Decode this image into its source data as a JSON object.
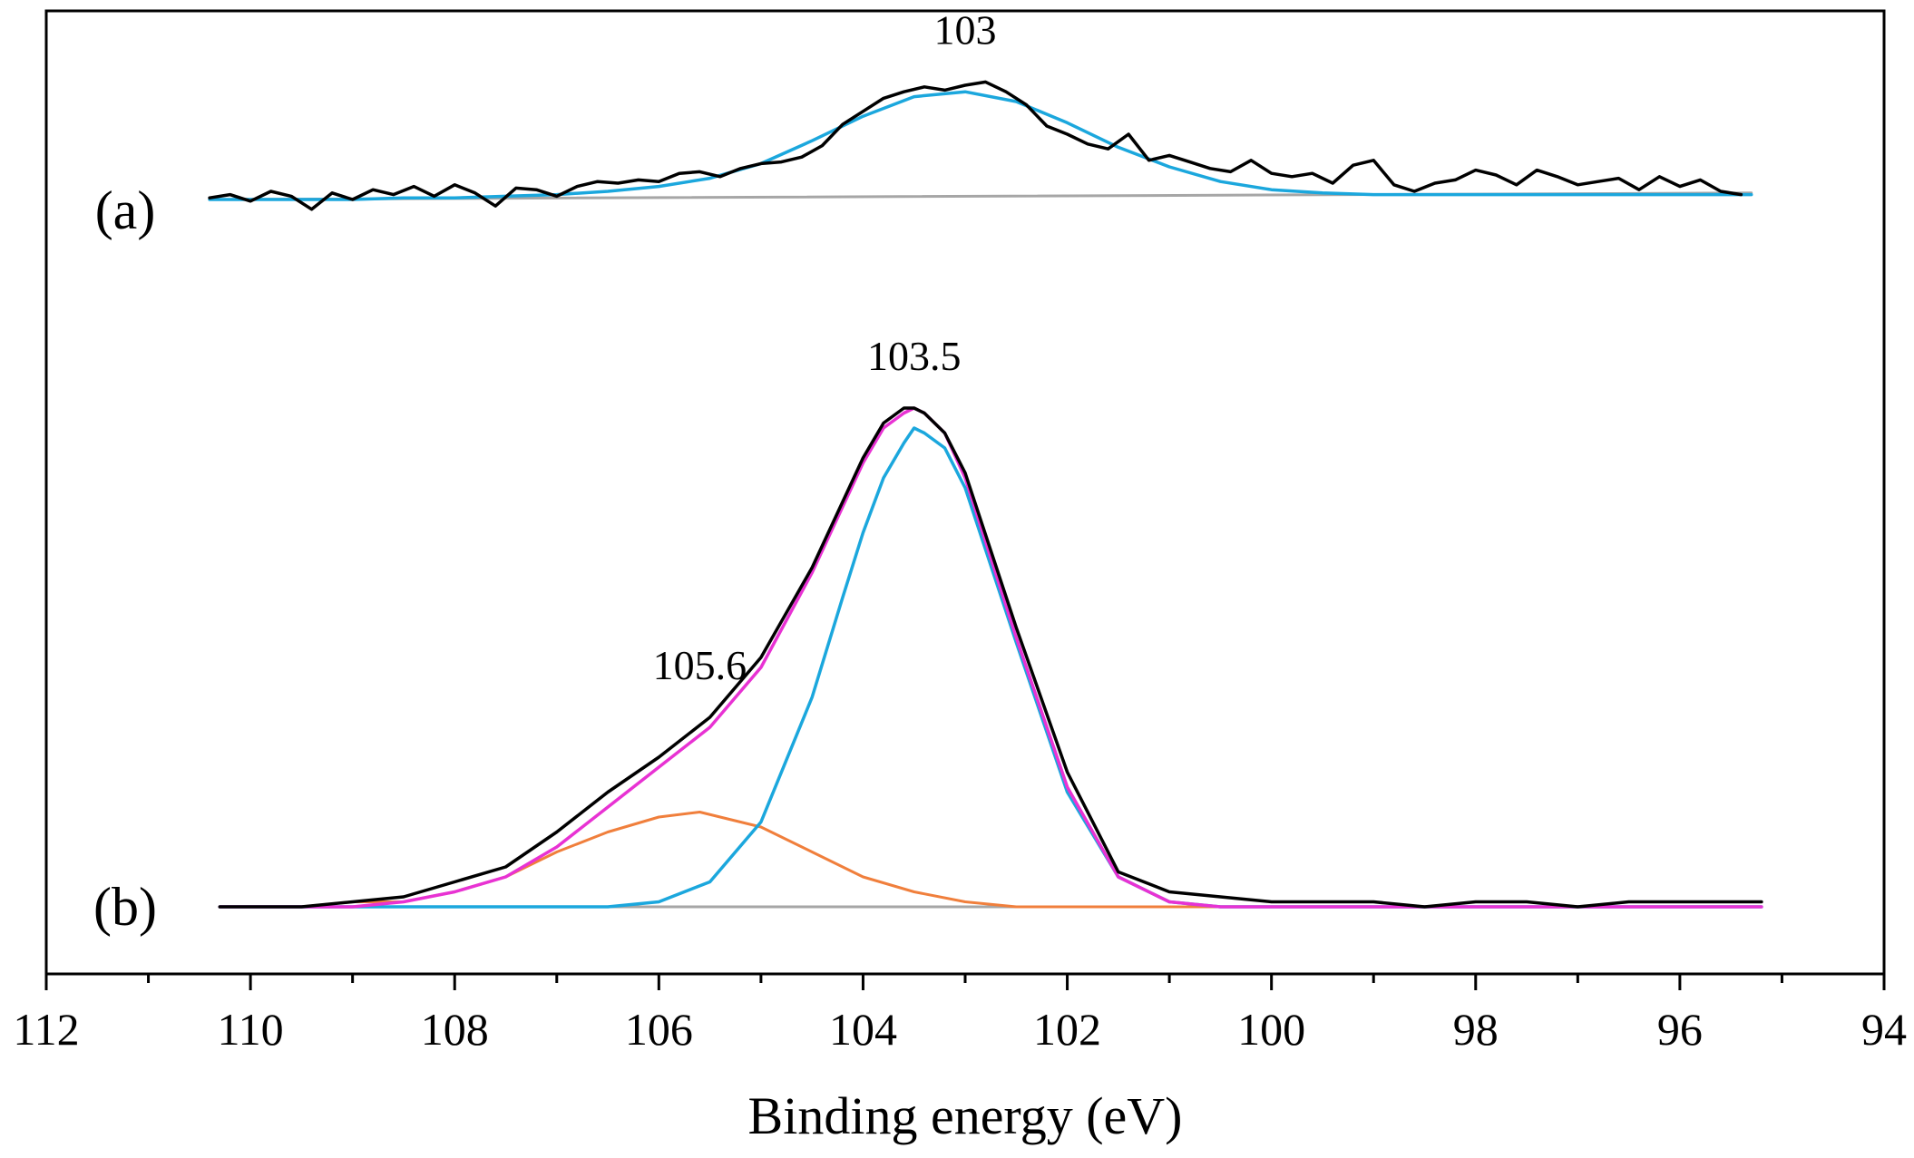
{
  "chart_data": {
    "type": "line",
    "xlabel": "Binding energy (eV)",
    "ylabel": "",
    "xlim": [
      112,
      94
    ],
    "x_reversed": true,
    "x_ticks": [
      112,
      110,
      108,
      106,
      104,
      102,
      100,
      98,
      96,
      94
    ],
    "y_ticks_shown": false,
    "grid": false,
    "colors": {
      "experimental": "#000000",
      "background": "#a6a6a6",
      "component_103": "#1ba7dd",
      "component_105_6": "#f07f3c",
      "envelope": "#e832d3"
    },
    "panels": [
      {
        "label": "(a)",
        "annotations": [
          {
            "text": "103",
            "x": 103
          }
        ],
        "x_range": [
          110.4,
          95.3
        ],
        "series": [
          {
            "role": "experimental",
            "x": [
              110.4,
              110.2,
              110.0,
              109.8,
              109.6,
              109.4,
              109.2,
              109.0,
              108.8,
              108.6,
              108.4,
              108.2,
              108.0,
              107.8,
              107.6,
              107.4,
              107.2,
              107.0,
              106.8,
              106.6,
              106.4,
              106.2,
              106.0,
              105.8,
              105.6,
              105.4,
              105.2,
              105.0,
              104.8,
              104.6,
              104.4,
              104.2,
              104.0,
              103.8,
              103.6,
              103.4,
              103.2,
              103.0,
              102.8,
              102.6,
              102.4,
              102.2,
              102.0,
              101.8,
              101.6,
              101.4,
              101.2,
              101.0,
              100.8,
              100.6,
              100.4,
              100.2,
              100.0,
              99.8,
              99.6,
              99.4,
              99.2,
              99.0,
              98.8,
              98.6,
              98.4,
              98.2,
              98.0,
              97.8,
              97.6,
              97.4,
              97.2,
              97.0,
              96.8,
              96.6,
              96.4,
              96.2,
              96.0,
              95.8,
              95.6,
              95.4
            ],
            "y": [
              0.01,
              0.03,
              -0.01,
              0.05,
              0.02,
              -0.06,
              0.04,
              0.0,
              0.06,
              0.03,
              0.08,
              0.02,
              0.09,
              0.04,
              -0.04,
              0.07,
              0.06,
              0.02,
              0.08,
              0.11,
              0.1,
              0.12,
              0.11,
              0.16,
              0.17,
              0.14,
              0.19,
              0.22,
              0.23,
              0.26,
              0.33,
              0.46,
              0.54,
              0.62,
              0.66,
              0.69,
              0.67,
              0.7,
              0.72,
              0.66,
              0.58,
              0.45,
              0.4,
              0.34,
              0.31,
              0.4,
              0.24,
              0.27,
              0.23,
              0.19,
              0.17,
              0.24,
              0.16,
              0.14,
              0.16,
              0.1,
              0.21,
              0.24,
              0.09,
              0.05,
              0.1,
              0.12,
              0.18,
              0.15,
              0.09,
              0.18,
              0.14,
              0.09,
              0.11,
              0.13,
              0.06,
              0.14,
              0.08,
              0.12,
              0.05,
              0.03
            ]
          },
          {
            "role": "component_103",
            "x": [
              110.4,
              110.0,
              109.5,
              109.0,
              108.5,
              108.0,
              107.5,
              107.0,
              106.5,
              106.0,
              105.5,
              105.0,
              104.5,
              104.0,
              103.5,
              103.0,
              102.5,
              102.0,
              101.5,
              101.0,
              100.5,
              100.0,
              99.5,
              99.0,
              98.5,
              98.0,
              97.5,
              97.0,
              96.5,
              96.0,
              95.5,
              95.3
            ],
            "y": [
              0.0,
              0.0,
              0.0,
              0.0,
              0.01,
              0.01,
              0.02,
              0.03,
              0.05,
              0.08,
              0.13,
              0.22,
              0.36,
              0.51,
              0.63,
              0.66,
              0.6,
              0.47,
              0.32,
              0.2,
              0.11,
              0.06,
              0.04,
              0.03,
              0.03,
              0.03,
              0.03,
              0.03,
              0.03,
              0.03,
              0.03,
              0.03
            ]
          },
          {
            "role": "background",
            "x": [
              110.4,
              95.3
            ],
            "y": [
              0.0,
              0.04
            ]
          }
        ]
      },
      {
        "label": "(b)",
        "annotations": [
          {
            "text": "103.5",
            "x": 103.5
          },
          {
            "text": "105.6",
            "x": 105.6
          }
        ],
        "x_range": [
          110.3,
          95.2
        ],
        "series": [
          {
            "role": "experimental",
            "x": [
              110.3,
              110.0,
              109.5,
              109.0,
              108.5,
              108.0,
              107.5,
              107.0,
              106.5,
              106.0,
              105.5,
              105.0,
              104.5,
              104.0,
              103.8,
              103.6,
              103.5,
              103.4,
              103.2,
              103.0,
              102.5,
              102.0,
              101.5,
              101.0,
              100.5,
              100.0,
              99.5,
              99.0,
              98.5,
              98.0,
              97.5,
              97.0,
              96.5,
              96.0,
              95.5,
              95.2
            ],
            "y": [
              0.0,
              0.0,
              0.0,
              0.01,
              0.02,
              0.05,
              0.08,
              0.15,
              0.23,
              0.3,
              0.38,
              0.5,
              0.68,
              0.9,
              0.97,
              1.0,
              1.0,
              0.99,
              0.95,
              0.87,
              0.56,
              0.27,
              0.07,
              0.03,
              0.02,
              0.01,
              0.01,
              0.01,
              0.0,
              0.01,
              0.01,
              0.0,
              0.01,
              0.01,
              0.01,
              0.01
            ]
          },
          {
            "role": "envelope",
            "x": [
              110.3,
              110.0,
              109.5,
              109.0,
              108.5,
              108.0,
              107.5,
              107.0,
              106.5,
              106.0,
              105.5,
              105.0,
              104.5,
              104.0,
              103.8,
              103.6,
              103.5,
              103.4,
              103.2,
              103.0,
              102.5,
              102.0,
              101.5,
              101.0,
              100.5,
              100.0,
              99.5,
              99.0,
              98.5,
              98.0,
              97.5,
              97.0,
              96.5,
              96.0,
              95.5,
              95.2
            ],
            "y": [
              0.0,
              0.0,
              0.0,
              0.0,
              0.01,
              0.03,
              0.06,
              0.12,
              0.2,
              0.28,
              0.36,
              0.48,
              0.67,
              0.89,
              0.96,
              0.99,
              1.0,
              0.99,
              0.95,
              0.86,
              0.54,
              0.24,
              0.06,
              0.01,
              0.0,
              0.0,
              0.0,
              0.0,
              0.0,
              0.0,
              0.0,
              0.0,
              0.0,
              0.0,
              0.0,
              0.0
            ]
          },
          {
            "role": "component_103",
            "x": [
              110.3,
              107.5,
              107.0,
              106.5,
              106.0,
              105.5,
              105.0,
              104.5,
              104.2,
              104.0,
              103.8,
              103.6,
              103.5,
              103.4,
              103.2,
              103.0,
              102.5,
              102.0,
              101.5,
              101.0,
              100.5,
              100.0,
              95.2
            ],
            "y": [
              0.0,
              0.0,
              0.0,
              0.0,
              0.01,
              0.05,
              0.17,
              0.42,
              0.62,
              0.75,
              0.86,
              0.93,
              0.96,
              0.95,
              0.92,
              0.84,
              0.53,
              0.23,
              0.06,
              0.01,
              0.0,
              0.0,
              0.0
            ]
          },
          {
            "role": "component_105_6",
            "x": [
              110.3,
              110.0,
              109.5,
              109.0,
              108.5,
              108.0,
              107.5,
              107.0,
              106.5,
              106.0,
              105.6,
              105.0,
              104.5,
              104.0,
              103.5,
              103.0,
              102.5,
              102.0,
              101.5,
              101.0,
              100.5,
              95.2
            ],
            "y": [
              0.0,
              0.0,
              0.0,
              0.01,
              0.01,
              0.03,
              0.06,
              0.11,
              0.15,
              0.18,
              0.19,
              0.16,
              0.11,
              0.06,
              0.03,
              0.01,
              0.0,
              0.0,
              0.0,
              0.0,
              0.0,
              0.0
            ]
          },
          {
            "role": "background",
            "x": [
              110.3,
              95.2
            ],
            "y": [
              0.0,
              0.0
            ]
          }
        ]
      }
    ]
  }
}
